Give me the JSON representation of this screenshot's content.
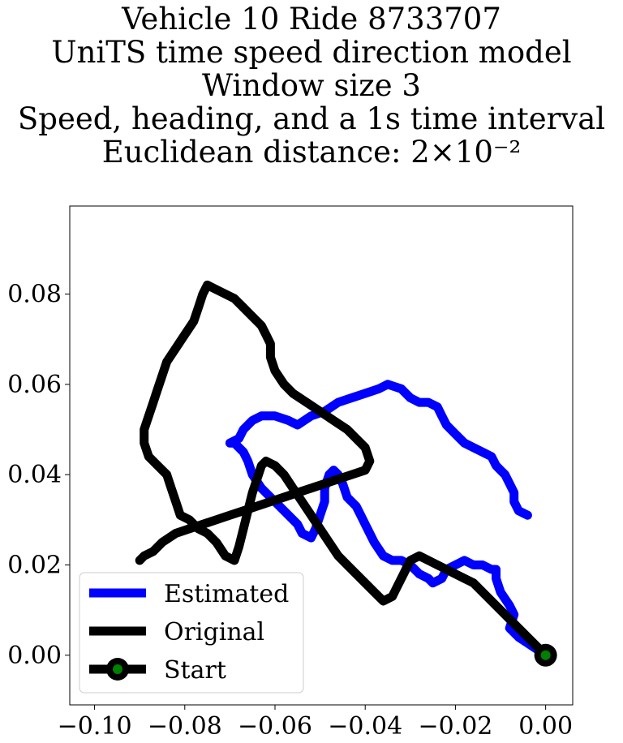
{
  "chart_data": {
    "type": "line",
    "title_lines": [
      "Vehicle 10 Ride 8733707",
      "UniTS time speed direction model",
      "Window size 3",
      "Speed, heading, and a 1s time interval",
      "Euclidean distance: 2×10⁻²"
    ],
    "xlim": [
      -0.1055,
      0.006
    ],
    "ylim": [
      -0.011,
      0.0995
    ],
    "xticks": [
      -0.1,
      -0.08,
      -0.06,
      -0.04,
      -0.02,
      0.0
    ],
    "xtick_labels": [
      "−0.10",
      "−0.08",
      "−0.06",
      "−0.04",
      "−0.02",
      "0.00"
    ],
    "yticks": [
      0.0,
      0.02,
      0.04,
      0.06,
      0.08
    ],
    "ytick_labels": [
      "0.00",
      "0.02",
      "0.04",
      "0.06",
      "0.08"
    ],
    "grid": false,
    "legend_position": "lower-left",
    "series": [
      {
        "name": "Estimated",
        "color": "#0000ff",
        "points": [
          [
            0.0,
            0.0
          ],
          [
            -0.003,
            0.002
          ],
          [
            -0.006,
            0.004
          ],
          [
            -0.008,
            0.006
          ],
          [
            -0.007,
            0.009
          ],
          [
            -0.008,
            0.011
          ],
          [
            -0.01,
            0.014
          ],
          [
            -0.011,
            0.017
          ],
          [
            -0.011,
            0.019
          ],
          [
            -0.012,
            0.019
          ],
          [
            -0.014,
            0.02
          ],
          [
            -0.016,
            0.02
          ],
          [
            -0.018,
            0.021
          ],
          [
            -0.02,
            0.02
          ],
          [
            -0.022,
            0.019
          ],
          [
            -0.023,
            0.017
          ],
          [
            -0.025,
            0.016
          ],
          [
            -0.026,
            0.017
          ],
          [
            -0.028,
            0.018
          ],
          [
            -0.03,
            0.02
          ],
          [
            -0.032,
            0.021
          ],
          [
            -0.034,
            0.021
          ],
          [
            -0.036,
            0.022
          ],
          [
            -0.038,
            0.025
          ],
          [
            -0.039,
            0.027
          ],
          [
            -0.04,
            0.029
          ],
          [
            -0.041,
            0.031
          ],
          [
            -0.042,
            0.033
          ],
          [
            -0.044,
            0.035
          ],
          [
            -0.045,
            0.038
          ],
          [
            -0.046,
            0.04
          ],
          [
            -0.047,
            0.041
          ],
          [
            -0.048,
            0.04
          ],
          [
            -0.049,
            0.037
          ],
          [
            -0.049,
            0.034
          ],
          [
            -0.05,
            0.031
          ],
          [
            -0.051,
            0.028
          ],
          [
            -0.052,
            0.026
          ],
          [
            -0.054,
            0.027
          ],
          [
            -0.055,
            0.029
          ],
          [
            -0.057,
            0.031
          ],
          [
            -0.059,
            0.033
          ],
          [
            -0.061,
            0.035
          ],
          [
            -0.063,
            0.037
          ],
          [
            -0.065,
            0.04
          ],
          [
            -0.066,
            0.043
          ],
          [
            -0.067,
            0.045
          ],
          [
            -0.069,
            0.047
          ],
          [
            -0.07,
            0.047
          ],
          [
            -0.068,
            0.048
          ],
          [
            -0.067,
            0.05
          ],
          [
            -0.065,
            0.052
          ],
          [
            -0.063,
            0.053
          ],
          [
            -0.06,
            0.053
          ],
          [
            -0.057,
            0.052
          ],
          [
            -0.055,
            0.051
          ],
          [
            -0.052,
            0.053
          ],
          [
            -0.049,
            0.054
          ],
          [
            -0.046,
            0.056
          ],
          [
            -0.043,
            0.057
          ],
          [
            -0.04,
            0.058
          ],
          [
            -0.037,
            0.059
          ],
          [
            -0.035,
            0.06
          ],
          [
            -0.032,
            0.059
          ],
          [
            -0.031,
            0.058
          ],
          [
            -0.03,
            0.057
          ],
          [
            -0.028,
            0.056
          ],
          [
            -0.026,
            0.056
          ],
          [
            -0.024,
            0.055
          ],
          [
            -0.023,
            0.053
          ],
          [
            -0.022,
            0.051
          ],
          [
            -0.02,
            0.049
          ],
          [
            -0.018,
            0.047
          ],
          [
            -0.016,
            0.046
          ],
          [
            -0.014,
            0.045
          ],
          [
            -0.012,
            0.044
          ],
          [
            -0.011,
            0.042
          ],
          [
            -0.01,
            0.041
          ],
          [
            -0.009,
            0.04
          ],
          [
            -0.008,
            0.038
          ],
          [
            -0.007,
            0.036
          ],
          [
            -0.007,
            0.034
          ],
          [
            -0.006,
            0.032
          ],
          [
            -0.004,
            0.031
          ]
        ]
      },
      {
        "name": "Original",
        "color": "#000000",
        "points": [
          [
            0.0,
            0.0
          ],
          [
            -0.002,
            0.002
          ],
          [
            -0.004,
            0.004
          ],
          [
            -0.006,
            0.006
          ],
          [
            -0.008,
            0.008
          ],
          [
            -0.01,
            0.01
          ],
          [
            -0.012,
            0.012
          ],
          [
            -0.014,
            0.014
          ],
          [
            -0.016,
            0.016
          ],
          [
            -0.018,
            0.017
          ],
          [
            -0.02,
            0.018
          ],
          [
            -0.022,
            0.019
          ],
          [
            -0.024,
            0.02
          ],
          [
            -0.026,
            0.021
          ],
          [
            -0.028,
            0.022
          ],
          [
            -0.03,
            0.021
          ],
          [
            -0.031,
            0.019
          ],
          [
            -0.032,
            0.017
          ],
          [
            -0.033,
            0.015
          ],
          [
            -0.034,
            0.013
          ],
          [
            -0.036,
            0.012
          ],
          [
            -0.038,
            0.014
          ],
          [
            -0.04,
            0.016
          ],
          [
            -0.042,
            0.018
          ],
          [
            -0.044,
            0.02
          ],
          [
            -0.046,
            0.022
          ],
          [
            -0.048,
            0.025
          ],
          [
            -0.05,
            0.028
          ],
          [
            -0.052,
            0.031
          ],
          [
            -0.054,
            0.034
          ],
          [
            -0.056,
            0.037
          ],
          [
            -0.058,
            0.04
          ],
          [
            -0.06,
            0.042
          ],
          [
            -0.062,
            0.043
          ],
          [
            -0.063,
            0.042
          ],
          [
            -0.064,
            0.039
          ],
          [
            -0.065,
            0.036
          ],
          [
            -0.066,
            0.032
          ],
          [
            -0.067,
            0.028
          ],
          [
            -0.068,
            0.024
          ],
          [
            -0.069,
            0.021
          ],
          [
            -0.071,
            0.022
          ],
          [
            -0.073,
            0.025
          ],
          [
            -0.075,
            0.027
          ],
          [
            -0.077,
            0.028
          ],
          [
            -0.079,
            0.03
          ],
          [
            -0.081,
            0.031
          ],
          [
            -0.082,
            0.034
          ],
          [
            -0.083,
            0.037
          ],
          [
            -0.084,
            0.04
          ],
          [
            -0.086,
            0.042
          ],
          [
            -0.088,
            0.044
          ],
          [
            -0.089,
            0.047
          ],
          [
            -0.089,
            0.05
          ],
          [
            -0.088,
            0.053
          ],
          [
            -0.087,
            0.056
          ],
          [
            -0.086,
            0.059
          ],
          [
            -0.085,
            0.062
          ],
          [
            -0.084,
            0.065
          ],
          [
            -0.082,
            0.068
          ],
          [
            -0.08,
            0.071
          ],
          [
            -0.078,
            0.074
          ],
          [
            -0.077,
            0.077
          ],
          [
            -0.076,
            0.08
          ],
          [
            -0.075,
            0.082
          ],
          [
            -0.073,
            0.081
          ],
          [
            -0.071,
            0.08
          ],
          [
            -0.069,
            0.079
          ],
          [
            -0.067,
            0.077
          ],
          [
            -0.065,
            0.075
          ],
          [
            -0.063,
            0.073
          ],
          [
            -0.062,
            0.071
          ],
          [
            -0.061,
            0.069
          ],
          [
            -0.061,
            0.066
          ],
          [
            -0.06,
            0.063
          ],
          [
            -0.058,
            0.06
          ],
          [
            -0.056,
            0.058
          ],
          [
            -0.053,
            0.056
          ],
          [
            -0.05,
            0.054
          ],
          [
            -0.047,
            0.052
          ],
          [
            -0.044,
            0.05
          ],
          [
            -0.042,
            0.048
          ],
          [
            -0.04,
            0.046
          ],
          [
            -0.039,
            0.043
          ],
          [
            -0.04,
            0.041
          ],
          [
            -0.043,
            0.04
          ],
          [
            -0.046,
            0.039
          ],
          [
            -0.049,
            0.038
          ],
          [
            -0.052,
            0.037
          ],
          [
            -0.055,
            0.036
          ],
          [
            -0.058,
            0.035
          ],
          [
            -0.061,
            0.034
          ],
          [
            -0.064,
            0.033
          ],
          [
            -0.067,
            0.032
          ],
          [
            -0.07,
            0.031
          ],
          [
            -0.073,
            0.03
          ],
          [
            -0.076,
            0.029
          ],
          [
            -0.079,
            0.028
          ],
          [
            -0.082,
            0.027
          ],
          [
            -0.085,
            0.025
          ],
          [
            -0.087,
            0.023
          ],
          [
            -0.089,
            0.022
          ],
          [
            -0.09,
            0.021
          ]
        ]
      },
      {
        "name": "Start",
        "color": "#000000",
        "marker_fill": "#008000",
        "points": [
          [
            0.0,
            0.0
          ]
        ]
      }
    ]
  }
}
